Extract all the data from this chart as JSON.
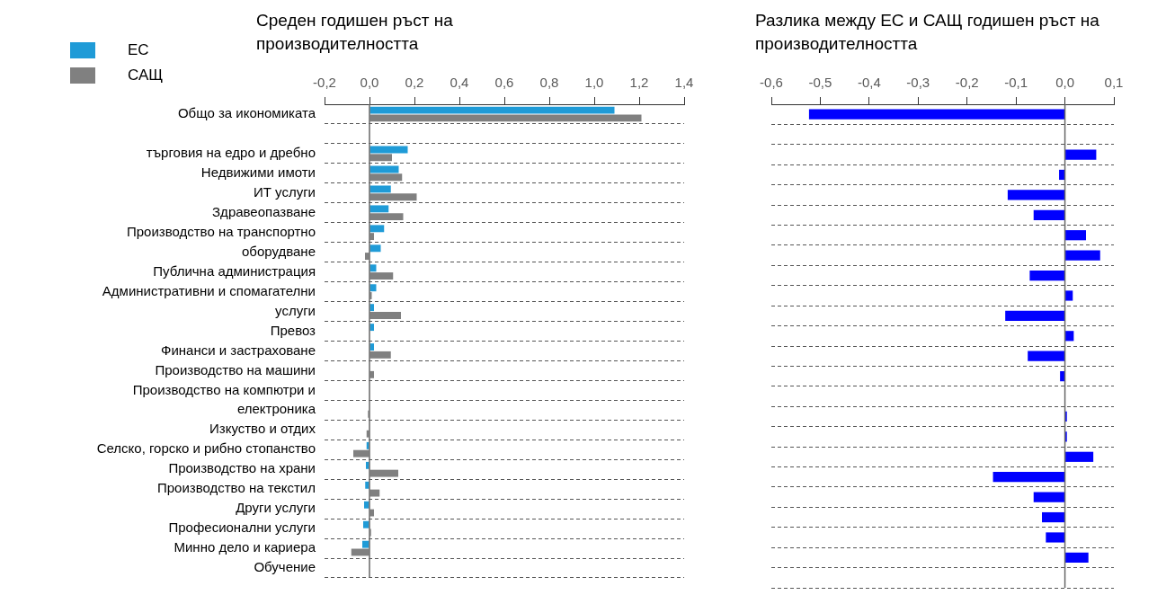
{
  "chart_data": [
    {
      "type": "bar",
      "orientation": "horizontal",
      "title": "Среден годишен ръст на производителността",
      "categories": [
        "Общо за икономиката",
        null,
        "търговия на едро и дребно",
        "Недвижими имоти",
        "ИТ услуги",
        "Здравеопазване",
        "Производство на транспортно",
        "оборудване",
        "Публична администрация",
        "Административни и спомагателни",
        "услуги",
        "Превоз",
        "Финанси и застраховане",
        "Производство на машини",
        "Производство на компютри и",
        "електроника",
        "Изкуство и отдих",
        "Селско, горско и рибно стопанство",
        "Производство на храни",
        "Производство на текстил",
        "Други услуги",
        "Професионални услуги",
        "Минно дело и кариера",
        "Обучение"
      ],
      "series": [
        {
          "name": "ЕС",
          "color": "#1f9bd7",
          "values": [
            1.09,
            null,
            0.17,
            0.13,
            0.095,
            0.085,
            0.065,
            0.05,
            0.03,
            0.03,
            0.02,
            0.02,
            0.02,
            null,
            null,
            null,
            null,
            -0.013,
            -0.016,
            -0.019,
            -0.024,
            -0.028,
            -0.032,
            null
          ]
        },
        {
          "name": "САЩ",
          "color": "#808080",
          "values": [
            1.21,
            null,
            0.1,
            0.145,
            0.21,
            0.15,
            0.02,
            -0.02,
            0.105,
            0.01,
            0.14,
            null,
            0.095,
            0.02,
            null,
            -0.007,
            -0.013,
            -0.072,
            0.128,
            0.045,
            0.02,
            0.007,
            -0.081,
            null
          ]
        }
      ],
      "xlim": [
        -0.2,
        1.4
      ],
      "xticks": [
        {
          "value": -0.2,
          "label": "-0,2"
        },
        {
          "value": 0,
          "label": "0,0"
        },
        {
          "value": 0.2,
          "label": "0,2"
        },
        {
          "value": 0.4,
          "label": "0,4"
        },
        {
          "value": 0.6,
          "label": "0,6"
        },
        {
          "value": 0.8,
          "label": "0,8"
        },
        {
          "value": 1,
          "label": "1,0"
        },
        {
          "value": 1.2,
          "label": "1,2"
        },
        {
          "value": 1.4,
          "label": "1,4"
        }
      ],
      "ref_lines": [
        {
          "axis": "x",
          "value": 0
        }
      ],
      "grid": "y",
      "line_style": "dashed",
      "legend": "top left"
    },
    {
      "type": "bar",
      "orientation": "horizontal",
      "title": "Разлика между ЕС и САЩ годишен ръст на производителността",
      "categories": [
        null,
        null,
        null,
        null,
        null,
        null,
        null,
        null,
        null,
        null,
        null,
        null,
        null,
        null,
        null,
        null,
        null,
        null,
        null,
        null,
        null,
        null,
        null,
        null
      ],
      "color": "#0000ff",
      "values": [
        -0.523,
        null,
        0.064,
        -0.012,
        -0.117,
        -0.064,
        0.043,
        0.072,
        -0.072,
        0.016,
        -0.122,
        0.018,
        -0.076,
        -0.01,
        null,
        0.004,
        0.004,
        0.058,
        -0.147,
        -0.064,
        -0.047,
        -0.039,
        0.048,
        null
      ],
      "xlim": [
        -0.6,
        0.1
      ],
      "xticks": [
        {
          "value": -0.6,
          "label": "-0,6"
        },
        {
          "value": -0.5,
          "label": "-0,5"
        },
        {
          "value": -0.4,
          "label": "-0,4"
        },
        {
          "value": -0.3,
          "label": "-0,3"
        },
        {
          "value": -0.2,
          "label": "-0,2"
        },
        {
          "value": -0.1,
          "label": "-0,1"
        },
        {
          "value": 0,
          "label": "0,0"
        },
        {
          "value": 0.1,
          "label": "0,1"
        }
      ],
      "ref_lines": [
        {
          "axis": "x",
          "value": 0
        }
      ],
      "grid": "y",
      "line_style": "dashed",
      "tick_labels": "x"
    }
  ]
}
